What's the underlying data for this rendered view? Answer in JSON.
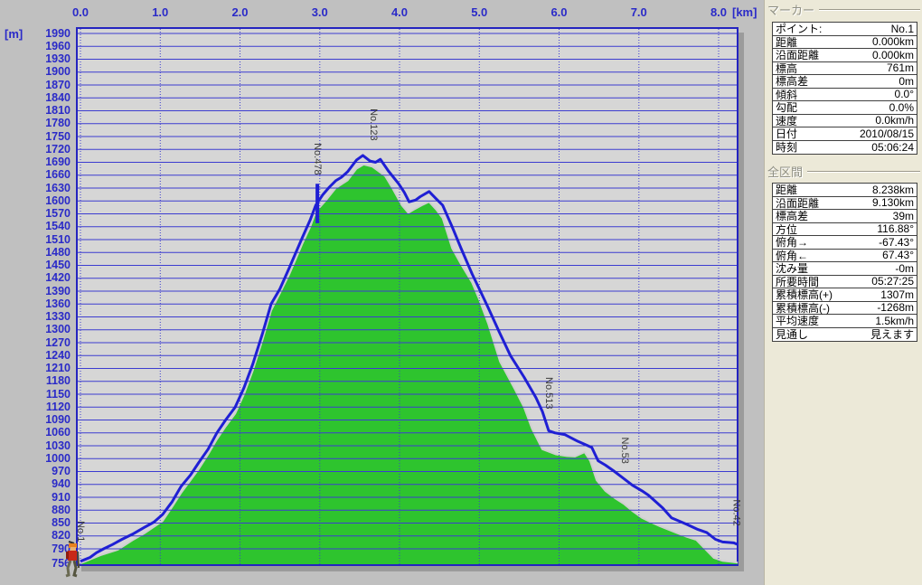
{
  "colors": {
    "window_bg": "#c0c0c0",
    "plot_bg": "#d6d6d6",
    "grid_blue": "#3c3cd0",
    "axis_text_blue": "#2a2ac8",
    "plot_border_blue": "#2424c0",
    "track_blue": "#1f1fd4",
    "terrain_green": "#2ec42e",
    "terrain_edge": "#cfcfcf",
    "shadow_gray": "#9b9b9b",
    "panel_bg": "#ece9d8",
    "waypoint_text": "#3a3a3a"
  },
  "panel": {
    "marker": {
      "title": "マーカー",
      "rows": [
        {
          "label": "ポイント:",
          "value": "No.1"
        },
        {
          "label": "距離",
          "value": "0.000km"
        },
        {
          "label": "沿面距離",
          "value": "0.000km"
        },
        {
          "label": "標高",
          "value": "761m"
        },
        {
          "label": "標高差",
          "value": "0m"
        },
        {
          "label": "傾斜",
          "value": "0.0°"
        },
        {
          "label": "勾配",
          "value": "0.0%"
        },
        {
          "label": "速度",
          "value": "0.0km/h"
        },
        {
          "label": "日付",
          "value": "2010/08/15"
        },
        {
          "label": "時刻",
          "value": "05:06:24"
        }
      ]
    },
    "total": {
      "title": "全区間",
      "rows": [
        {
          "label": "距離",
          "value": "8.238km"
        },
        {
          "label": "沿面距離",
          "value": "9.130km"
        },
        {
          "label": "標高差",
          "value": "39m"
        },
        {
          "label": "方位",
          "value": "116.88°"
        },
        {
          "label": "俯角→",
          "value": "-67.43°"
        },
        {
          "label": "俯角←",
          "value": "67.43°"
        },
        {
          "label": "沈み量",
          "value": "-0m"
        },
        {
          "label": "所要時間",
          "value": "05:27:25"
        },
        {
          "label": "累積標高(+)",
          "value": "1307m"
        },
        {
          "label": "累積標高(-)",
          "value": "-1268m"
        },
        {
          "label": "平均速度",
          "value": "1.5km/h"
        },
        {
          "label": "見通し",
          "value": "見えます"
        }
      ]
    }
  },
  "chart_data": {
    "type": "area",
    "title": "",
    "x_axis": {
      "unit": "[km]",
      "tick_labels": [
        "0.0",
        "1.0",
        "2.0",
        "3.0",
        "4.0",
        "5.0",
        "6.0",
        "7.0",
        "8.0"
      ],
      "max_km": 8.24
    },
    "y_axis": {
      "unit": "[m]",
      "grid_min": 790,
      "grid_max": 1990,
      "step": 30,
      "base": 756
    },
    "grid": {
      "horizontal": "solid",
      "vertical": "dotted"
    },
    "waypoints": [
      {
        "label": "No.1",
        "km": 0.0,
        "label_top_elev": 855
      },
      {
        "label": "No.478",
        "km": 2.97,
        "label_top_elev": 1735
      },
      {
        "label": "No.123",
        "km": 3.67,
        "label_top_elev": 1815
      },
      {
        "label": "No.513",
        "km": 5.87,
        "label_top_elev": 1190
      },
      {
        "label": "No.53",
        "km": 6.82,
        "label_top_elev": 1050
      },
      {
        "label": "No.42",
        "km": 8.22,
        "label_top_elev": 905
      }
    ],
    "marker_tick": {
      "km": 2.97,
      "elev_top": 1640,
      "elev_bottom": 1548
    },
    "start_icon": "hiker",
    "series": [
      {
        "name": "terrain-profile",
        "style": "filled-area",
        "color": "#2ec42e",
        "points": [
          [
            0,
            756
          ],
          [
            0.1,
            764
          ],
          [
            0.25,
            775
          ],
          [
            0.47,
            788
          ],
          [
            0.65,
            810
          ],
          [
            0.8,
            826
          ],
          [
            1.03,
            855
          ],
          [
            1.15,
            888
          ],
          [
            1.26,
            920
          ],
          [
            1.38,
            950
          ],
          [
            1.48,
            975
          ],
          [
            1.6,
            1010
          ],
          [
            1.71,
            1045
          ],
          [
            1.82,
            1075
          ],
          [
            1.94,
            1105
          ],
          [
            2.05,
            1150
          ],
          [
            2.16,
            1205
          ],
          [
            2.28,
            1275
          ],
          [
            2.39,
            1345
          ],
          [
            2.5,
            1385
          ],
          [
            2.62,
            1430
          ],
          [
            2.7,
            1465
          ],
          [
            2.78,
            1500
          ],
          [
            2.88,
            1540
          ],
          [
            2.95,
            1575
          ],
          [
            3.07,
            1600
          ],
          [
            3.2,
            1630
          ],
          [
            3.35,
            1648
          ],
          [
            3.46,
            1675
          ],
          [
            3.55,
            1685
          ],
          [
            3.66,
            1680
          ],
          [
            3.82,
            1658
          ],
          [
            3.91,
            1630
          ],
          [
            4.03,
            1590
          ],
          [
            4.11,
            1572
          ],
          [
            4.18,
            1580
          ],
          [
            4.28,
            1590
          ],
          [
            4.37,
            1598
          ],
          [
            4.46,
            1580
          ],
          [
            4.54,
            1560
          ],
          [
            4.66,
            1490
          ],
          [
            4.78,
            1450
          ],
          [
            4.91,
            1410
          ],
          [
            5.0,
            1370
          ],
          [
            5.11,
            1315
          ],
          [
            5.26,
            1226
          ],
          [
            5.45,
            1160
          ],
          [
            5.56,
            1120
          ],
          [
            5.66,
            1070
          ],
          [
            5.79,
            1022
          ],
          [
            5.96,
            1010
          ],
          [
            6.1,
            1006
          ],
          [
            6.2,
            1005
          ],
          [
            6.32,
            1015
          ],
          [
            6.39,
            995
          ],
          [
            6.47,
            950
          ],
          [
            6.58,
            925
          ],
          [
            6.7,
            908
          ],
          [
            6.81,
            895
          ],
          [
            6.92,
            878
          ],
          [
            7.04,
            862
          ],
          [
            7.15,
            852
          ],
          [
            7.26,
            843
          ],
          [
            7.38,
            834
          ],
          [
            7.49,
            826
          ],
          [
            7.6,
            818
          ],
          [
            7.72,
            811
          ],
          [
            7.83,
            790
          ],
          [
            7.94,
            769
          ],
          [
            8.05,
            762
          ],
          [
            8.15,
            760
          ],
          [
            8.24,
            758
          ]
        ]
      },
      {
        "name": "track-elevation",
        "style": "line",
        "color": "#1f1fd4",
        "points": [
          [
            0,
            761
          ],
          [
            0.12,
            770
          ],
          [
            0.2,
            781
          ],
          [
            0.29,
            790
          ],
          [
            0.4,
            800
          ],
          [
            0.52,
            812
          ],
          [
            0.65,
            824
          ],
          [
            0.8,
            840
          ],
          [
            0.92,
            852
          ],
          [
            1.03,
            870
          ],
          [
            1.15,
            900
          ],
          [
            1.26,
            935
          ],
          [
            1.38,
            962
          ],
          [
            1.48,
            990
          ],
          [
            1.6,
            1022
          ],
          [
            1.71,
            1060
          ],
          [
            1.82,
            1090
          ],
          [
            1.94,
            1120
          ],
          [
            2.05,
            1165
          ],
          [
            2.16,
            1220
          ],
          [
            2.28,
            1290
          ],
          [
            2.39,
            1360
          ],
          [
            2.5,
            1395
          ],
          [
            2.62,
            1445
          ],
          [
            2.7,
            1480
          ],
          [
            2.78,
            1514
          ],
          [
            2.88,
            1556
          ],
          [
            2.95,
            1590
          ],
          [
            3.04,
            1615
          ],
          [
            3.12,
            1632
          ],
          [
            3.2,
            1647
          ],
          [
            3.27,
            1655
          ],
          [
            3.35,
            1668
          ],
          [
            3.46,
            1695
          ],
          [
            3.54,
            1706
          ],
          [
            3.63,
            1693
          ],
          [
            3.7,
            1690
          ],
          [
            3.76,
            1697
          ],
          [
            3.86,
            1670
          ],
          [
            3.99,
            1640
          ],
          [
            4.06,
            1620
          ],
          [
            4.12,
            1598
          ],
          [
            4.2,
            1602
          ],
          [
            4.26,
            1610
          ],
          [
            4.37,
            1622
          ],
          [
            4.46,
            1605
          ],
          [
            4.54,
            1590
          ],
          [
            4.66,
            1540
          ],
          [
            4.77,
            1490
          ],
          [
            4.91,
            1430
          ],
          [
            5.0,
            1395
          ],
          [
            5.11,
            1352
          ],
          [
            5.25,
            1295
          ],
          [
            5.39,
            1240
          ],
          [
            5.56,
            1190
          ],
          [
            5.71,
            1142
          ],
          [
            5.79,
            1110
          ],
          [
            5.87,
            1065
          ],
          [
            5.95,
            1060
          ],
          [
            6.07,
            1056
          ],
          [
            6.24,
            1040
          ],
          [
            6.41,
            1026
          ],
          [
            6.49,
            995
          ],
          [
            6.58,
            985
          ],
          [
            6.68,
            972
          ],
          [
            6.78,
            958
          ],
          [
            6.92,
            938
          ],
          [
            7.04,
            925
          ],
          [
            7.12,
            915
          ],
          [
            7.21,
            900
          ],
          [
            7.3,
            885
          ],
          [
            7.41,
            862
          ],
          [
            7.5,
            855
          ],
          [
            7.6,
            847
          ],
          [
            7.74,
            835
          ],
          [
            7.85,
            828
          ],
          [
            7.96,
            812
          ],
          [
            8.05,
            806
          ],
          [
            8.19,
            804
          ],
          [
            8.24,
            800
          ]
        ]
      }
    ]
  }
}
